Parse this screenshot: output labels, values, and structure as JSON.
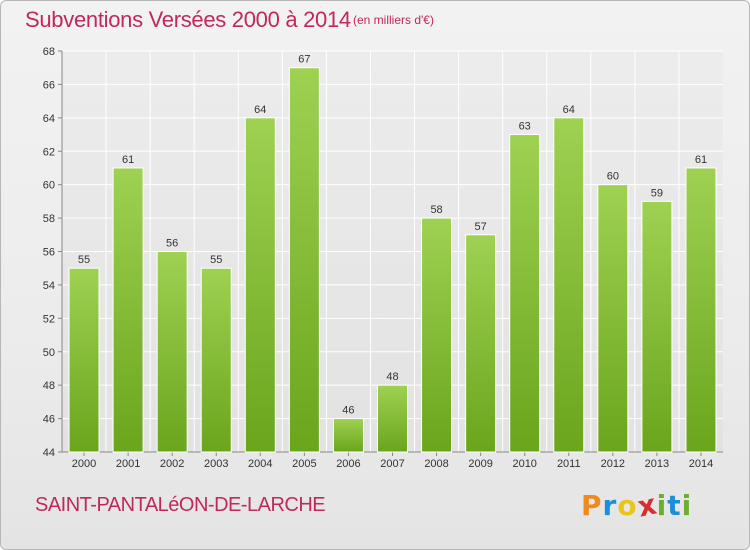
{
  "header": {
    "title": "Subventions Versées 2000 à 2014",
    "subtitle": "(en milliers d'€)"
  },
  "footer": {
    "commune": "SAINT-PANTALéON-DE-LARCHE",
    "logo_letters": [
      "P",
      "r",
      "o",
      "x",
      "i",
      "t",
      "i"
    ],
    "logo_colors": [
      "#f08a1c",
      "#1e8fd6",
      "#e8c619",
      "#d62f2f",
      "#6cae2e",
      "#1e8fd6",
      "#6cae2e"
    ]
  },
  "chart_data": {
    "type": "bar",
    "title": "Subventions Versées 2000 à 2014",
    "subtitle": "(en milliers d'€)",
    "xlabel": "",
    "ylabel": "",
    "categories": [
      "2000",
      "2001",
      "2002",
      "2003",
      "2004",
      "2005",
      "2006",
      "2007",
      "2008",
      "2009",
      "2010",
      "2011",
      "2012",
      "2013",
      "2014"
    ],
    "values": [
      55,
      61,
      56,
      55,
      64,
      67,
      46,
      48,
      58,
      57,
      63,
      64,
      60,
      59,
      61
    ],
    "data_labels": [
      "55",
      "61",
      "56",
      "55",
      "64",
      "67",
      "46",
      "48",
      "58",
      "57",
      "63",
      "64",
      "60",
      "59",
      "61"
    ],
    "ylim": [
      44,
      68
    ],
    "yticks": [
      "44",
      "46",
      "48",
      "50",
      "52",
      "54",
      "56",
      "58",
      "60",
      "62",
      "64",
      "66",
      "68"
    ],
    "grid": true,
    "bar_color": "#8cc63f"
  }
}
